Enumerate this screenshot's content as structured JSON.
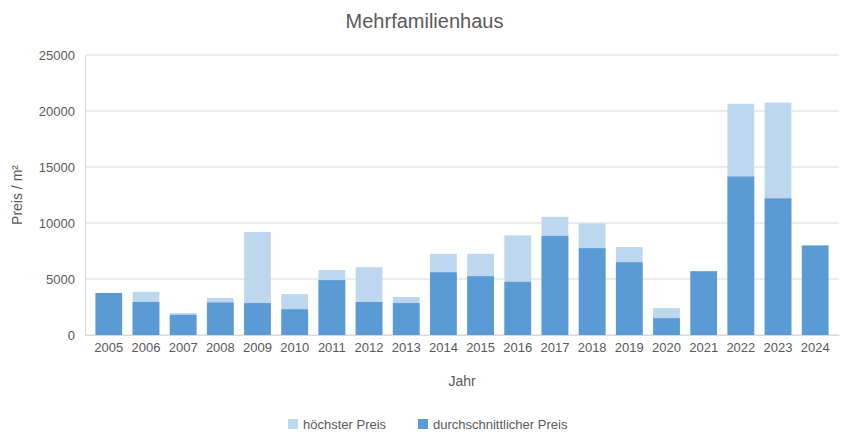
{
  "chart_data": {
    "type": "bar",
    "title": "Mehrfamilienhaus",
    "x_label": "Jahr",
    "y_label": "Preis / m²",
    "categories": [
      "2005",
      "2006",
      "2007",
      "2008",
      "2009",
      "2010",
      "2011",
      "2012",
      "2013",
      "2014",
      "2015",
      "2016",
      "2017",
      "2018",
      "2019",
      "2020",
      "2021",
      "2022",
      "2023",
      "2024"
    ],
    "series": [
      {
        "name": "höchster Preis",
        "color": "#bdd7ee",
        "values": [
          null,
          3850,
          1950,
          3300,
          9200,
          3650,
          5800,
          6050,
          3400,
          7250,
          7250,
          8900,
          10550,
          9950,
          7850,
          2400,
          null,
          20650,
          20750,
          null
        ]
      },
      {
        "name": "durchschnittlicher Preis",
        "color": "#5b9bd5",
        "values": [
          3750,
          2950,
          1800,
          2900,
          2850,
          2300,
          4900,
          2950,
          2850,
          5600,
          5250,
          4750,
          8850,
          7750,
          6500,
          1500,
          5700,
          14150,
          12200,
          8000
        ]
      }
    ],
    "stacked": false,
    "ylim": [
      0,
      25000
    ],
    "yticks": [
      0,
      5000,
      10000,
      15000,
      20000,
      25000
    ],
    "grid": true,
    "legend": "bottom"
  }
}
